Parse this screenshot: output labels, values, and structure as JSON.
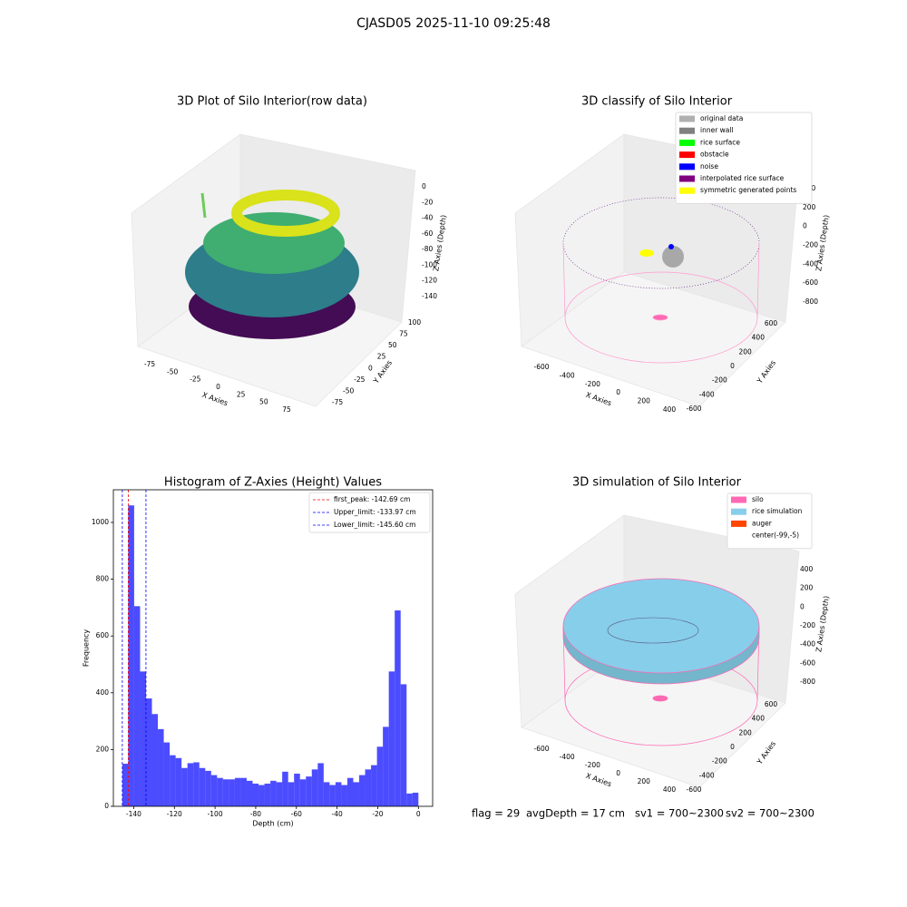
{
  "suptitle": "CJASD05 2025-11-10 09:25:48",
  "panels": [
    {
      "type": "scatter3d",
      "title": "3D Plot of Silo Interior(row data)",
      "xlabel": "X Axies",
      "ylabel": "Y Axies",
      "zlabel": "Z Axies (Depth)",
      "xticks": [
        -75,
        -50,
        -25,
        0,
        25,
        50,
        75
      ],
      "yticks": [
        -75,
        -50,
        -25,
        0,
        25,
        50,
        75,
        100
      ],
      "zticks": [
        0,
        -20,
        -40,
        -60,
        -80,
        -100,
        -120,
        -140
      ]
    },
    {
      "type": "scatter3d",
      "title": "3D classify of Silo Interior",
      "xlabel": "X Axies",
      "ylabel": "Y Axies",
      "zlabel": "Z Axies (Depth)",
      "xticks": [
        -600,
        -400,
        -200,
        0,
        200,
        400
      ],
      "yticks": [
        -600,
        -400,
        -200,
        0,
        200,
        400,
        600
      ],
      "zticks": [
        400,
        200,
        0,
        -200,
        -400,
        -600,
        -800
      ],
      "legend": [
        {
          "name": "original data",
          "color": "#b0b0b0"
        },
        {
          "name": "inner wall",
          "color": "#808080"
        },
        {
          "name": "rice surface",
          "color": "#00ff00"
        },
        {
          "name": "obstacle",
          "color": "#ff0000"
        },
        {
          "name": "noise",
          "color": "#0000ff"
        },
        {
          "name": "interpolated rice surface",
          "color": "#800080"
        },
        {
          "name": "symmetric generated points",
          "color": "#ffff00"
        }
      ]
    },
    {
      "type": "histogram",
      "title": "Histogram of Z-Axies (Height) Values",
      "xlabel": "Depth (cm)",
      "ylabel": "Frequency",
      "color": "#0000ff",
      "bins": [
        -145.6,
        -142.69,
        -139.78,
        -136.86,
        -133.95,
        -131.04,
        -128.13,
        -125.22,
        -122.3,
        -119.39,
        -116.48,
        -113.57,
        -110.66,
        -107.74,
        -104.83,
        -101.92,
        -99.01,
        -96.1,
        -93.18,
        -90.27,
        -87.36,
        -84.45,
        -81.54,
        -78.62,
        -75.71,
        -72.8,
        -69.89,
        -66.98,
        -64.06,
        -61.15,
        -58.24,
        -55.33,
        -52.42,
        -49.5,
        -46.59,
        -43.68,
        -40.77,
        -37.86,
        -34.94,
        -32.03,
        -29.12,
        -26.21,
        -23.3,
        -20.38,
        -17.47,
        -14.56,
        -11.65,
        -8.74,
        -5.82,
        -2.91,
        0
      ],
      "values": [
        150,
        1060,
        705,
        475,
        380,
        325,
        272,
        225,
        180,
        170,
        135,
        152,
        155,
        135,
        125,
        110,
        100,
        95,
        95,
        100,
        100,
        90,
        80,
        75,
        80,
        90,
        85,
        122,
        85,
        115,
        95,
        105,
        130,
        152,
        85,
        75,
        85,
        75,
        100,
        85,
        110,
        130,
        145,
        210,
        280,
        475,
        690,
        430,
        45,
        48
      ],
      "xlim": [
        -150,
        7
      ],
      "ylim": [
        0,
        1115
      ],
      "xticks": [
        -140,
        -120,
        -100,
        -80,
        -60,
        -40,
        -20,
        0
      ],
      "yticks": [
        0,
        200,
        400,
        600,
        800,
        1000
      ],
      "lines": [
        {
          "name": "first_peak: -142.69 cm",
          "value": -142.69,
          "color": "#ff0000"
        },
        {
          "name": "Upper_limit: -133.97 cm",
          "value": -133.97,
          "color": "#0000ff"
        },
        {
          "name": "Lower_limit: -145.60 cm",
          "value": -145.6,
          "color": "#0000ff"
        }
      ]
    },
    {
      "type": "scatter3d",
      "title": "3D simulation of Silo Interior",
      "xlabel": "X Axies",
      "ylabel": "Y Axies",
      "zlabel": "Z Axies (Depth)",
      "xticks": [
        -600,
        -400,
        -200,
        0,
        200,
        400
      ],
      "yticks": [
        -600,
        -400,
        -200,
        0,
        200,
        400,
        600
      ],
      "zticks": [
        400,
        200,
        0,
        -200,
        -400,
        -600,
        -800
      ],
      "legend": [
        {
          "name": "silo",
          "color": "#ff69b4"
        },
        {
          "name": "rice simulation",
          "color": "#87ceeb"
        },
        {
          "name": "auger",
          "color": "#ff4500"
        },
        {
          "name": "center(-99,-5)"
        }
      ]
    }
  ],
  "footer": [
    "flag = 29",
    "avgDepth = 17 cm",
    "sv1 = 700~2300",
    "sv2 = 700~2300"
  ]
}
